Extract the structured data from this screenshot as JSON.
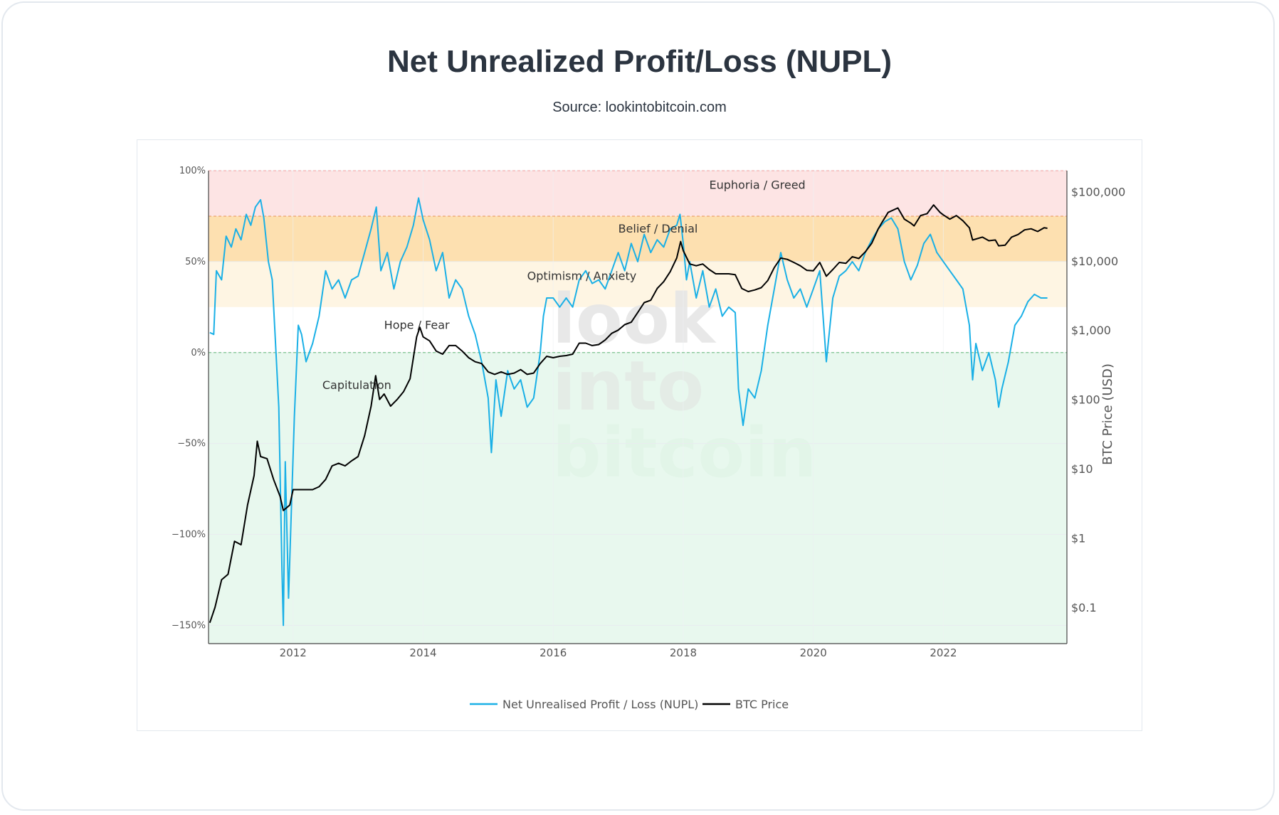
{
  "header": {
    "title": "Net Unrealized Profit/Loss (NUPL)",
    "subtitle": "Source: lookintobitcoin.com"
  },
  "watermark": [
    "look",
    "into",
    "bitcoin"
  ],
  "colors": {
    "nupl_line": "#1ab0e6",
    "price_line": "#000000",
    "zone_euphoria": "#fde4e4",
    "zone_belief": "#fde0b0",
    "zone_optimism": "#fef5e3",
    "zone_hope": "#ffffff",
    "zone_capitulation": "#e8f8ee"
  },
  "chart_data": {
    "type": "line",
    "title": "Net Unrealized Profit/Loss (NUPL)",
    "xlim": [
      2010.7,
      2023.9
    ],
    "x_ticks": [
      "2012",
      "2014",
      "2016",
      "2018",
      "2020",
      "2022"
    ],
    "y_left": {
      "lim": [
        -160,
        100
      ],
      "ticks": [
        "100%",
        "50%",
        "0%",
        "−50%",
        "−100%",
        "−150%"
      ]
    },
    "y_right": {
      "label": "BTC Price (USD)",
      "scale": "log",
      "lim": [
        0.03,
        200000
      ],
      "ticks": [
        "$100,000",
        "$10,000",
        "$1,000",
        "$100",
        "$10",
        "$1",
        "$0.1"
      ]
    },
    "zones": [
      {
        "label": "Euphoria / Greed",
        "from": 75,
        "to": 100
      },
      {
        "label": "Belief / Denial",
        "from": 50,
        "to": 75
      },
      {
        "label": "Optimism / Anxiety",
        "from": 25,
        "to": 50
      },
      {
        "label": "Hope / Fear",
        "from": 0,
        "to": 25
      },
      {
        "label": "Capitulation",
        "from": -160,
        "to": 0
      }
    ],
    "legend": [
      "Net Unrealised Profit / Loss (NUPL)",
      "BTC Price"
    ],
    "series": [
      {
        "name": "Net Unrealised Profit / Loss (NUPL)",
        "axis": "left",
        "unit": "%",
        "points": [
          [
            2010.72,
            11
          ],
          [
            2010.78,
            10
          ],
          [
            2010.82,
            45
          ],
          [
            2010.9,
            40
          ],
          [
            2010.97,
            64
          ],
          [
            2011.05,
            58
          ],
          [
            2011.12,
            68
          ],
          [
            2011.2,
            62
          ],
          [
            2011.28,
            76
          ],
          [
            2011.35,
            70
          ],
          [
            2011.42,
            80
          ],
          [
            2011.5,
            84
          ],
          [
            2011.55,
            74
          ],
          [
            2011.62,
            50
          ],
          [
            2011.68,
            40
          ],
          [
            2011.72,
            12
          ],
          [
            2011.78,
            -30
          ],
          [
            2011.83,
            -120
          ],
          [
            2011.85,
            -150
          ],
          [
            2011.88,
            -60
          ],
          [
            2011.93,
            -135
          ],
          [
            2011.98,
            -80
          ],
          [
            2012.02,
            -35
          ],
          [
            2012.08,
            15
          ],
          [
            2012.13,
            10
          ],
          [
            2012.2,
            -5
          ],
          [
            2012.3,
            5
          ],
          [
            2012.4,
            20
          ],
          [
            2012.5,
            45
          ],
          [
            2012.6,
            35
          ],
          [
            2012.7,
            40
          ],
          [
            2012.8,
            30
          ],
          [
            2012.9,
            40
          ],
          [
            2013.0,
            42
          ],
          [
            2013.1,
            55
          ],
          [
            2013.2,
            68
          ],
          [
            2013.28,
            80
          ],
          [
            2013.35,
            45
          ],
          [
            2013.45,
            55
          ],
          [
            2013.55,
            35
          ],
          [
            2013.65,
            50
          ],
          [
            2013.75,
            58
          ],
          [
            2013.85,
            70
          ],
          [
            2013.93,
            85
          ],
          [
            2014.0,
            73
          ],
          [
            2014.1,
            62
          ],
          [
            2014.2,
            45
          ],
          [
            2014.3,
            55
          ],
          [
            2014.4,
            30
          ],
          [
            2014.5,
            40
          ],
          [
            2014.6,
            35
          ],
          [
            2014.7,
            20
          ],
          [
            2014.8,
            10
          ],
          [
            2014.9,
            -5
          ],
          [
            2015.0,
            -25
          ],
          [
            2015.05,
            -55
          ],
          [
            2015.12,
            -15
          ],
          [
            2015.2,
            -35
          ],
          [
            2015.3,
            -10
          ],
          [
            2015.4,
            -20
          ],
          [
            2015.5,
            -15
          ],
          [
            2015.6,
            -30
          ],
          [
            2015.7,
            -25
          ],
          [
            2015.8,
            0
          ],
          [
            2015.85,
            20
          ],
          [
            2015.9,
            30
          ],
          [
            2016.0,
            30
          ],
          [
            2016.1,
            25
          ],
          [
            2016.2,
            30
          ],
          [
            2016.3,
            25
          ],
          [
            2016.4,
            40
          ],
          [
            2016.5,
            45
          ],
          [
            2016.6,
            38
          ],
          [
            2016.7,
            40
          ],
          [
            2016.8,
            35
          ],
          [
            2016.9,
            45
          ],
          [
            2017.0,
            55
          ],
          [
            2017.1,
            45
          ],
          [
            2017.2,
            60
          ],
          [
            2017.3,
            50
          ],
          [
            2017.4,
            65
          ],
          [
            2017.5,
            55
          ],
          [
            2017.6,
            62
          ],
          [
            2017.7,
            58
          ],
          [
            2017.8,
            68
          ],
          [
            2017.9,
            70
          ],
          [
            2017.95,
            76
          ],
          [
            2018.0,
            60
          ],
          [
            2018.05,
            40
          ],
          [
            2018.1,
            50
          ],
          [
            2018.2,
            30
          ],
          [
            2018.3,
            45
          ],
          [
            2018.4,
            25
          ],
          [
            2018.5,
            35
          ],
          [
            2018.6,
            20
          ],
          [
            2018.7,
            25
          ],
          [
            2018.8,
            22
          ],
          [
            2018.85,
            -20
          ],
          [
            2018.92,
            -40
          ],
          [
            2019.0,
            -20
          ],
          [
            2019.1,
            -25
          ],
          [
            2019.2,
            -10
          ],
          [
            2019.3,
            15
          ],
          [
            2019.4,
            35
          ],
          [
            2019.5,
            55
          ],
          [
            2019.6,
            40
          ],
          [
            2019.7,
            30
          ],
          [
            2019.8,
            35
          ],
          [
            2019.9,
            25
          ],
          [
            2020.0,
            35
          ],
          [
            2020.1,
            45
          ],
          [
            2020.2,
            -5
          ],
          [
            2020.3,
            30
          ],
          [
            2020.4,
            42
          ],
          [
            2020.5,
            45
          ],
          [
            2020.6,
            50
          ],
          [
            2020.7,
            45
          ],
          [
            2020.8,
            55
          ],
          [
            2020.9,
            62
          ],
          [
            2021.0,
            68
          ],
          [
            2021.1,
            72
          ],
          [
            2021.2,
            74
          ],
          [
            2021.3,
            68
          ],
          [
            2021.4,
            50
          ],
          [
            2021.5,
            40
          ],
          [
            2021.6,
            48
          ],
          [
            2021.7,
            60
          ],
          [
            2021.8,
            65
          ],
          [
            2021.9,
            55
          ],
          [
            2022.0,
            50
          ],
          [
            2022.1,
            45
          ],
          [
            2022.2,
            40
          ],
          [
            2022.3,
            35
          ],
          [
            2022.4,
            15
          ],
          [
            2022.45,
            -15
          ],
          [
            2022.5,
            5
          ],
          [
            2022.6,
            -10
          ],
          [
            2022.7,
            0
          ],
          [
            2022.8,
            -15
          ],
          [
            2022.85,
            -30
          ],
          [
            2022.9,
            -20
          ],
          [
            2023.0,
            -5
          ],
          [
            2023.1,
            15
          ],
          [
            2023.2,
            20
          ],
          [
            2023.3,
            28
          ],
          [
            2023.4,
            32
          ],
          [
            2023.5,
            30
          ],
          [
            2023.6,
            30
          ]
        ]
      },
      {
        "name": "BTC Price",
        "axis": "right",
        "unit": "USD",
        "points": [
          [
            2010.72,
            0.06
          ],
          [
            2010.8,
            0.1
          ],
          [
            2010.9,
            0.25
          ],
          [
            2011.0,
            0.3
          ],
          [
            2011.1,
            0.9
          ],
          [
            2011.2,
            0.8
          ],
          [
            2011.3,
            3
          ],
          [
            2011.4,
            8
          ],
          [
            2011.45,
            25
          ],
          [
            2011.5,
            15
          ],
          [
            2011.6,
            14
          ],
          [
            2011.7,
            7
          ],
          [
            2011.8,
            4
          ],
          [
            2011.85,
            2.5
          ],
          [
            2011.95,
            3
          ],
          [
            2012.0,
            5
          ],
          [
            2012.1,
            5
          ],
          [
            2012.2,
            5
          ],
          [
            2012.3,
            5
          ],
          [
            2012.4,
            5.5
          ],
          [
            2012.5,
            7
          ],
          [
            2012.6,
            11
          ],
          [
            2012.7,
            12
          ],
          [
            2012.8,
            11
          ],
          [
            2012.9,
            13
          ],
          [
            2013.0,
            15
          ],
          [
            2013.1,
            30
          ],
          [
            2013.2,
            80
          ],
          [
            2013.27,
            220
          ],
          [
            2013.33,
            100
          ],
          [
            2013.4,
            120
          ],
          [
            2013.5,
            80
          ],
          [
            2013.6,
            100
          ],
          [
            2013.7,
            130
          ],
          [
            2013.8,
            200
          ],
          [
            2013.9,
            800
          ],
          [
            2013.95,
            1100
          ],
          [
            2014.0,
            800
          ],
          [
            2014.1,
            700
          ],
          [
            2014.2,
            500
          ],
          [
            2014.3,
            450
          ],
          [
            2014.4,
            600
          ],
          [
            2014.5,
            600
          ],
          [
            2014.6,
            500
          ],
          [
            2014.7,
            400
          ],
          [
            2014.8,
            350
          ],
          [
            2014.9,
            330
          ],
          [
            2015.0,
            250
          ],
          [
            2015.1,
            230
          ],
          [
            2015.2,
            250
          ],
          [
            2015.3,
            230
          ],
          [
            2015.4,
            240
          ],
          [
            2015.5,
            270
          ],
          [
            2015.6,
            230
          ],
          [
            2015.7,
            240
          ],
          [
            2015.8,
            330
          ],
          [
            2015.9,
            420
          ],
          [
            2016.0,
            400
          ],
          [
            2016.1,
            420
          ],
          [
            2016.2,
            430
          ],
          [
            2016.3,
            450
          ],
          [
            2016.4,
            650
          ],
          [
            2016.5,
            650
          ],
          [
            2016.6,
            600
          ],
          [
            2016.7,
            620
          ],
          [
            2016.8,
            720
          ],
          [
            2016.9,
            900
          ],
          [
            2017.0,
            1000
          ],
          [
            2017.1,
            1200
          ],
          [
            2017.2,
            1300
          ],
          [
            2017.3,
            1800
          ],
          [
            2017.4,
            2500
          ],
          [
            2017.5,
            2700
          ],
          [
            2017.6,
            4000
          ],
          [
            2017.7,
            5000
          ],
          [
            2017.8,
            7000
          ],
          [
            2017.9,
            11000
          ],
          [
            2017.96,
            19000
          ],
          [
            2018.0,
            14000
          ],
          [
            2018.1,
            9000
          ],
          [
            2018.2,
            8500
          ],
          [
            2018.3,
            9000
          ],
          [
            2018.4,
            7500
          ],
          [
            2018.5,
            6500
          ],
          [
            2018.6,
            6500
          ],
          [
            2018.7,
            6500
          ],
          [
            2018.8,
            6300
          ],
          [
            2018.9,
            4000
          ],
          [
            2019.0,
            3600
          ],
          [
            2019.1,
            3800
          ],
          [
            2019.2,
            4100
          ],
          [
            2019.3,
            5200
          ],
          [
            2019.4,
            8000
          ],
          [
            2019.5,
            11000
          ],
          [
            2019.6,
            10500
          ],
          [
            2019.7,
            9500
          ],
          [
            2019.8,
            8500
          ],
          [
            2019.9,
            7300
          ],
          [
            2020.0,
            7200
          ],
          [
            2020.1,
            9500
          ],
          [
            2020.2,
            6000
          ],
          [
            2020.3,
            7500
          ],
          [
            2020.4,
            9500
          ],
          [
            2020.5,
            9200
          ],
          [
            2020.6,
            11500
          ],
          [
            2020.7,
            10800
          ],
          [
            2020.8,
            13500
          ],
          [
            2020.9,
            18000
          ],
          [
            2021.0,
            29000
          ],
          [
            2021.05,
            35000
          ],
          [
            2021.15,
            50000
          ],
          [
            2021.3,
            58000
          ],
          [
            2021.4,
            40000
          ],
          [
            2021.5,
            35000
          ],
          [
            2021.55,
            32000
          ],
          [
            2021.65,
            45000
          ],
          [
            2021.75,
            48000
          ],
          [
            2021.85,
            64000
          ],
          [
            2021.95,
            50000
          ],
          [
            2022.0,
            46000
          ],
          [
            2022.1,
            40000
          ],
          [
            2022.2,
            45000
          ],
          [
            2022.3,
            38000
          ],
          [
            2022.4,
            30000
          ],
          [
            2022.45,
            20000
          ],
          [
            2022.6,
            22000
          ],
          [
            2022.7,
            19500
          ],
          [
            2022.8,
            20000
          ],
          [
            2022.85,
            16500
          ],
          [
            2022.95,
            16800
          ],
          [
            2023.05,
            22000
          ],
          [
            2023.15,
            24000
          ],
          [
            2023.25,
            28000
          ],
          [
            2023.35,
            29000
          ],
          [
            2023.45,
            26500
          ],
          [
            2023.55,
            30000
          ],
          [
            2023.6,
            29500
          ]
        ]
      }
    ]
  }
}
